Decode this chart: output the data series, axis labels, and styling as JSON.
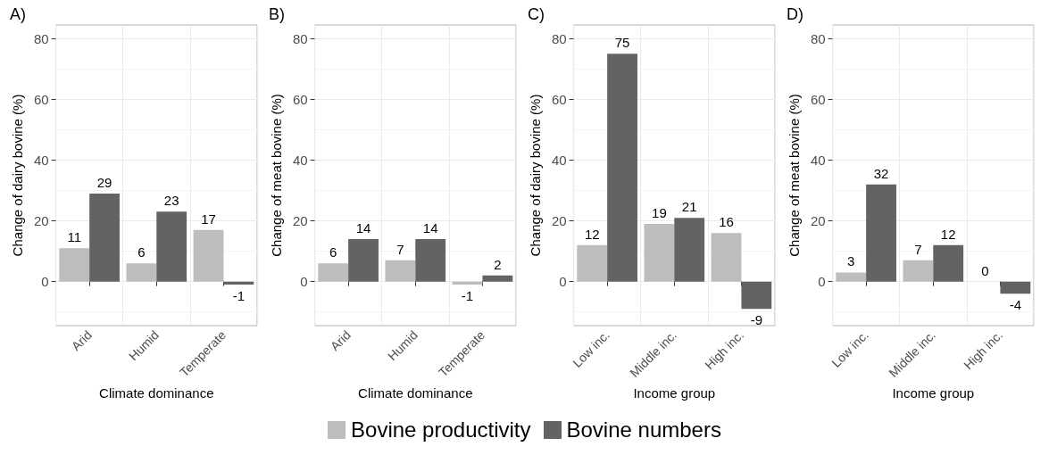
{
  "chart_data": [
    {
      "type": "bar",
      "title": "A)",
      "xlabel": "Climate dominance",
      "ylabel": "Change of dairy bovine (%)",
      "categories": [
        "Arid",
        "Humid",
        "Temperate"
      ],
      "series": [
        {
          "name": "Bovine productivity",
          "color": "#bdbdbd",
          "values": [
            11,
            6,
            17
          ]
        },
        {
          "name": "Bovine numbers",
          "color": "#636363",
          "values": [
            29,
            23,
            -1
          ]
        }
      ],
      "ylim": [
        -14.5,
        84.5
      ],
      "yticks": [
        0,
        20,
        40,
        60,
        80
      ],
      "grid": true,
      "data_labels": true,
      "legend": "bottom"
    },
    {
      "type": "bar",
      "title": "B)",
      "xlabel": "Climate dominance",
      "ylabel": "Change of meat bovine (%)",
      "categories": [
        "Arid",
        "Humid",
        "Temperate"
      ],
      "series": [
        {
          "name": "Bovine productivity",
          "color": "#bdbdbd",
          "values": [
            6,
            7,
            -1
          ]
        },
        {
          "name": "Bovine numbers",
          "color": "#636363",
          "values": [
            14,
            14,
            2
          ]
        }
      ],
      "ylim": [
        -14.5,
        84.5
      ],
      "yticks": [
        0,
        20,
        40,
        60,
        80
      ],
      "grid": true,
      "data_labels": true
    },
    {
      "type": "bar",
      "title": "C)",
      "xlabel": "Income group",
      "ylabel": "Change of dairy bovine (%)",
      "categories": [
        "Low inc.",
        "Middle inc.",
        "High inc."
      ],
      "series": [
        {
          "name": "Bovine productivity",
          "color": "#bdbdbd",
          "values": [
            12,
            19,
            16
          ]
        },
        {
          "name": "Bovine numbers",
          "color": "#636363",
          "values": [
            75,
            21,
            -9
          ]
        }
      ],
      "ylim": [
        -14.5,
        84.5
      ],
      "yticks": [
        0,
        20,
        40,
        60,
        80
      ],
      "grid": true,
      "data_labels": true
    },
    {
      "type": "bar",
      "title": "D)",
      "xlabel": "Income group",
      "ylabel": "Change of meat bovine (%)",
      "categories": [
        "Low inc.",
        "Middle inc.",
        "High inc."
      ],
      "series": [
        {
          "name": "Bovine productivity",
          "color": "#bdbdbd",
          "values": [
            3,
            7,
            0
          ]
        },
        {
          "name": "Bovine numbers",
          "color": "#636363",
          "values": [
            32,
            12,
            -4
          ]
        }
      ],
      "ylim": [
        -14.5,
        84.5
      ],
      "yticks": [
        0,
        20,
        40,
        60,
        80
      ],
      "grid": true,
      "data_labels": true
    }
  ]
}
